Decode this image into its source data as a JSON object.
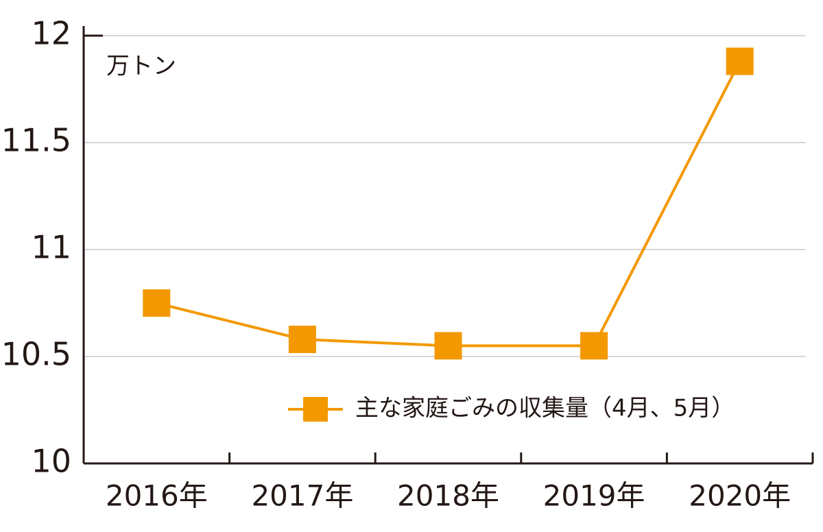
{
  "chart_data": {
    "type": "line",
    "y_axis_label": "万トン",
    "categories": [
      "2016年",
      "2017年",
      "2018年",
      "2019年",
      "2020年"
    ],
    "series": [
      {
        "name": "主な家庭ごみの収集量（4月、5月）",
        "color": "#f39800",
        "values": [
          10.75,
          10.58,
          10.55,
          10.55,
          11.88
        ]
      }
    ],
    "ylim": [
      10,
      12
    ],
    "yticks": [
      10,
      10.5,
      11,
      11.5,
      12
    ],
    "grid": true,
    "legend": "lower right"
  }
}
